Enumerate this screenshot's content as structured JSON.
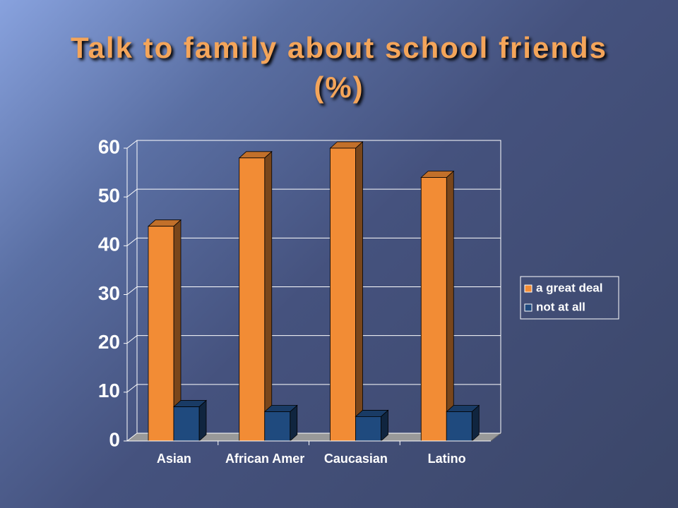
{
  "chart_data": {
    "type": "bar3d",
    "title": "Talk to family about school friends (%)",
    "categories": [
      "Asian",
      "African Amer",
      "Caucasian",
      "Latino"
    ],
    "series": [
      {
        "name": "a great deal",
        "color": "#f28c35",
        "values": [
          44,
          58,
          60,
          54
        ]
      },
      {
        "name": "not at all",
        "color": "#1f4a7e",
        "values": [
          7,
          6,
          5,
          6
        ]
      }
    ],
    "ylim": [
      0,
      60
    ],
    "yticks": [
      0,
      10,
      20,
      30,
      40,
      50,
      60
    ],
    "grid": true,
    "legend": "right"
  }
}
